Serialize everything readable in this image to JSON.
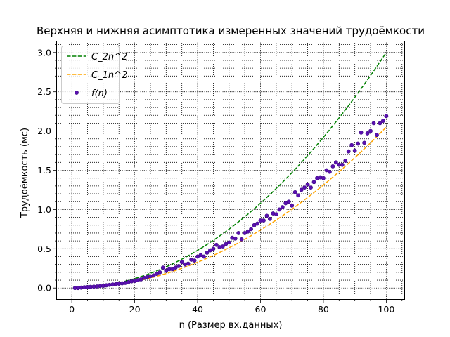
{
  "chart_data": {
    "type": "line",
    "title": "Верхняя и нижняя асимптотика измеренных значений трудоёмкости",
    "xlabel": "n (Размер вх.данных)",
    "ylabel": "Трудоёмкость (мс)",
    "xlim": [
      -4.95,
      105.95
    ],
    "ylim": [
      -0.15,
      3.15
    ],
    "xticks": [
      0,
      20,
      40,
      60,
      80,
      100
    ],
    "yticks": [
      0.0,
      0.5,
      1.0,
      1.5,
      2.0,
      2.5,
      3.0
    ],
    "xtick_labels": [
      "0",
      "20",
      "40",
      "60",
      "80",
      "100"
    ],
    "ytick_labels": [
      "0.0",
      "0.5",
      "1.0",
      "1.5",
      "2.0",
      "2.5",
      "3.0"
    ],
    "grid": true,
    "minor_grid": true,
    "legend_position": "top-left",
    "series": [
      {
        "name": "C_2n^2",
        "kind": "line",
        "style": "dashed",
        "color": "#008000",
        "coef": 0.0003
      },
      {
        "name": "C_1n^2",
        "kind": "line",
        "style": "dashed",
        "color": "#ffa500",
        "coef": 0.000205
      },
      {
        "name": "f(n)",
        "kind": "scatter",
        "color": "#5a0fb0",
        "edgecolor": "#3a0a80",
        "x": [
          1,
          2,
          3,
          4,
          5,
          6,
          7,
          8,
          9,
          10,
          11,
          12,
          13,
          14,
          15,
          16,
          17,
          18,
          19,
          20,
          21,
          22,
          23,
          24,
          25,
          26,
          27,
          28,
          29,
          30,
          31,
          32,
          33,
          34,
          35,
          36,
          37,
          38,
          39,
          40,
          41,
          42,
          43,
          44,
          45,
          46,
          47,
          48,
          49,
          50,
          51,
          52,
          53,
          54,
          55,
          56,
          57,
          58,
          59,
          60,
          61,
          62,
          63,
          64,
          65,
          66,
          67,
          68,
          69,
          70,
          71,
          72,
          73,
          74,
          75,
          76,
          77,
          78,
          79,
          80,
          81,
          82,
          83,
          84,
          85,
          86,
          87,
          88,
          89,
          90,
          91,
          92,
          93,
          94,
          95,
          96,
          97,
          98,
          99,
          100
        ],
        "y": [
          0.0,
          0.0,
          0.005,
          0.01,
          0.012,
          0.015,
          0.018,
          0.02,
          0.025,
          0.028,
          0.035,
          0.04,
          0.045,
          0.05,
          0.055,
          0.06,
          0.065,
          0.075,
          0.085,
          0.09,
          0.1,
          0.11,
          0.13,
          0.14,
          0.15,
          0.16,
          0.18,
          0.2,
          0.26,
          0.22,
          0.24,
          0.24,
          0.26,
          0.28,
          0.33,
          0.3,
          0.31,
          0.36,
          0.35,
          0.4,
          0.42,
          0.4,
          0.45,
          0.48,
          0.5,
          0.55,
          0.52,
          0.53,
          0.56,
          0.58,
          0.64,
          0.63,
          0.7,
          0.62,
          0.7,
          0.72,
          0.75,
          0.8,
          0.82,
          0.86,
          0.86,
          0.92,
          0.88,
          0.95,
          0.94,
          1.0,
          1.03,
          1.08,
          1.1,
          1.05,
          1.22,
          1.18,
          1.25,
          1.28,
          1.32,
          1.28,
          1.35,
          1.4,
          1.41,
          1.4,
          1.5,
          1.48,
          1.55,
          1.6,
          1.57,
          1.57,
          1.62,
          1.74,
          1.82,
          1.75,
          1.84,
          1.98,
          1.85,
          1.97,
          2.0,
          2.1,
          1.95,
          2.1,
          2.13,
          2.19
        ]
      }
    ]
  }
}
